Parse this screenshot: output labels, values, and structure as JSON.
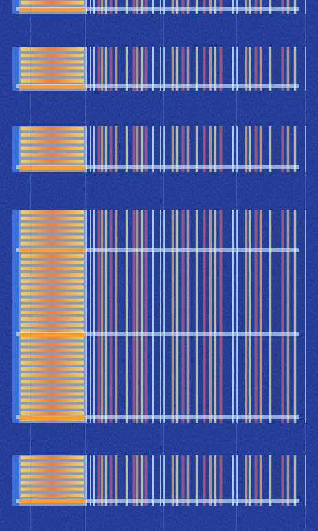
{
  "image": {
    "kind": "waterfall-spectrogram",
    "colormap": [
      "#0a1a6e",
      "#1f3fbf",
      "#4f8fff",
      "#cfe8ff",
      "#ffe066",
      "#ff9a1f",
      "#e0301a",
      "#8a0c10"
    ]
  },
  "bursts": [
    {
      "id": "burst-1",
      "duration_label": ""
    },
    {
      "id": "burst-2",
      "duration_label": ""
    },
    {
      "id": "burst-3",
      "duration_label": ""
    },
    {
      "id": "burst-4",
      "duration_label": ""
    },
    {
      "id": "burst-5",
      "duration_label": ""
    }
  ]
}
